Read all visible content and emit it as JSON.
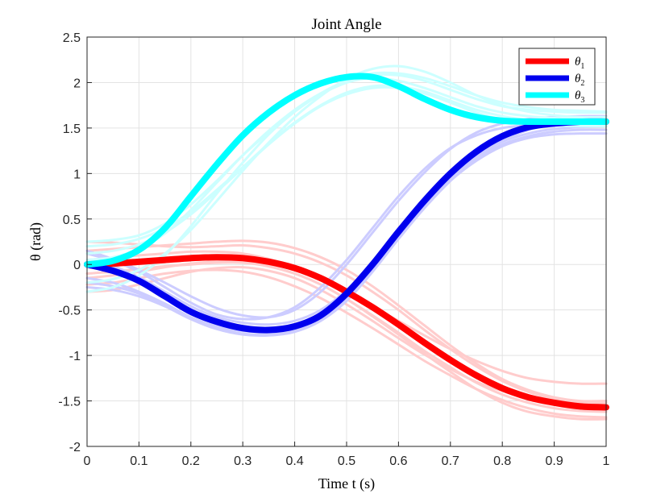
{
  "chart_data": {
    "type": "line",
    "title": "Joint Angle",
    "xlabel": "Time t (s)",
    "ylabel": "θ (rad)",
    "xlim": [
      0,
      1
    ],
    "ylim": [
      -2,
      2.5
    ],
    "x_ticks": [
      "0",
      "0.1",
      "0.2",
      "0.3",
      "0.4",
      "0.5",
      "0.6",
      "0.7",
      "0.8",
      "0.9",
      "1"
    ],
    "y_ticks": [
      "-2",
      "-1.5",
      "-1",
      "-0.5",
      "0",
      "0.5",
      "1",
      "1.5",
      "2",
      "2.5"
    ],
    "grid": true,
    "legend_position": "top-right",
    "x": [
      0,
      0.05,
      0.1,
      0.15,
      0.2,
      0.25,
      0.3,
      0.35,
      0.4,
      0.45,
      0.5,
      0.55,
      0.6,
      0.65,
      0.7,
      0.75,
      0.8,
      0.85,
      0.9,
      0.95,
      1
    ],
    "series": [
      {
        "name": "θ1",
        "label_symbol": "θ",
        "label_sub": "1",
        "color": "#ff0000",
        "values": [
          0,
          0.01,
          0.03,
          0.05,
          0.07,
          0.08,
          0.07,
          0.03,
          -0.04,
          -0.15,
          -0.3,
          -0.47,
          -0.66,
          -0.86,
          -1.05,
          -1.22,
          -1.36,
          -1.46,
          -1.52,
          -1.56,
          -1.57
        ]
      },
      {
        "name": "θ2",
        "label_symbol": "θ",
        "label_sub": "2",
        "color": "#0000ee",
        "values": [
          0,
          -0.07,
          -0.18,
          -0.35,
          -0.52,
          -0.63,
          -0.7,
          -0.72,
          -0.68,
          -0.56,
          -0.32,
          0,
          0.36,
          0.7,
          1,
          1.24,
          1.41,
          1.51,
          1.55,
          1.57,
          1.57
        ]
      },
      {
        "name": "θ3",
        "label_symbol": "θ",
        "label_sub": "3",
        "color": "#00ffff",
        "values": [
          0,
          0.04,
          0.16,
          0.4,
          0.75,
          1.1,
          1.42,
          1.67,
          1.86,
          1.99,
          2.06,
          2.06,
          1.96,
          1.82,
          1.7,
          1.62,
          1.58,
          1.57,
          1.57,
          1.57,
          1.57
        ]
      }
    ],
    "samples": [
      {
        "series": "θ1",
        "color": "#ffcccc",
        "values": [
          -0.1,
          -0.08,
          -0.05,
          -0.02,
          0,
          0.02,
          0.02,
          -0.02,
          -0.1,
          -0.22,
          -0.38,
          -0.56,
          -0.75,
          -0.95,
          -1.13,
          -1.3,
          -1.43,
          -1.52,
          -1.58,
          -1.61,
          -1.62
        ]
      },
      {
        "series": "θ1",
        "color": "#ffcccc",
        "values": [
          0.25,
          0.24,
          0.22,
          0.2,
          0.19,
          0.2,
          0.21,
          0.18,
          0.12,
          0.02,
          -0.12,
          -0.3,
          -0.5,
          -0.72,
          -0.93,
          -1.12,
          -1.28,
          -1.4,
          -1.48,
          -1.53,
          -1.55
        ]
      },
      {
        "series": "θ1",
        "color": "#ffcccc",
        "values": [
          -0.3,
          -0.28,
          -0.22,
          -0.15,
          -0.08,
          -0.04,
          -0.03,
          -0.07,
          -0.15,
          -0.28,
          -0.44,
          -0.62,
          -0.81,
          -0.99,
          -1.15,
          -1.29,
          -1.39,
          -1.46,
          -1.5,
          -1.52,
          -1.52
        ]
      },
      {
        "series": "θ1",
        "color": "#ffcccc",
        "values": [
          0.15,
          0.17,
          0.19,
          0.21,
          0.23,
          0.25,
          0.26,
          0.24,
          0.18,
          0.08,
          -0.06,
          -0.24,
          -0.45,
          -0.67,
          -0.89,
          -1.09,
          -1.26,
          -1.38,
          -1.46,
          -1.5,
          -1.5
        ]
      },
      {
        "series": "θ1",
        "color": "#ffcccc",
        "values": [
          -0.22,
          -0.2,
          -0.15,
          -0.1,
          -0.07,
          -0.06,
          -0.08,
          -0.14,
          -0.24,
          -0.37,
          -0.53,
          -0.7,
          -0.88,
          -1.06,
          -1.22,
          -1.37,
          -1.49,
          -1.58,
          -1.64,
          -1.67,
          -1.68
        ]
      },
      {
        "series": "θ1",
        "color": "#ffcccc",
        "values": [
          0.05,
          0.07,
          0.1,
          0.12,
          0.14,
          0.14,
          0.12,
          0.06,
          -0.03,
          -0.15,
          -0.3,
          -0.46,
          -0.62,
          -0.78,
          -0.93,
          -1.06,
          -1.17,
          -1.25,
          -1.29,
          -1.31,
          -1.31
        ]
      },
      {
        "series": "θ1",
        "color": "#ffcccc",
        "values": [
          -0.15,
          -0.12,
          -0.08,
          -0.03,
          0.01,
          0.03,
          0.03,
          -0.02,
          -0.1,
          -0.22,
          -0.38,
          -0.57,
          -0.77,
          -0.98,
          -1.18,
          -1.37,
          -1.52,
          -1.62,
          -1.67,
          -1.7,
          -1.7
        ]
      },
      {
        "series": "θ2",
        "color": "#ccccff",
        "values": [
          0.12,
          0.04,
          -0.08,
          -0.25,
          -0.42,
          -0.55,
          -0.6,
          -0.58,
          -0.47,
          -0.25,
          0.05,
          0.4,
          0.75,
          1.05,
          1.28,
          1.42,
          1.5,
          1.53,
          1.54,
          1.55,
          1.55
        ]
      },
      {
        "series": "θ2",
        "color": "#ccccff",
        "values": [
          -0.15,
          -0.2,
          -0.3,
          -0.43,
          -0.58,
          -0.68,
          -0.73,
          -0.74,
          -0.7,
          -0.58,
          -0.35,
          -0.02,
          0.33,
          0.66,
          0.94,
          1.16,
          1.32,
          1.41,
          1.46,
          1.48,
          1.48
        ]
      },
      {
        "series": "θ2",
        "color": "#ccccff",
        "values": [
          -0.25,
          -0.28,
          -0.35,
          -0.46,
          -0.6,
          -0.7,
          -0.76,
          -0.77,
          -0.72,
          -0.6,
          -0.38,
          -0.06,
          0.3,
          0.63,
          0.92,
          1.14,
          1.3,
          1.39,
          1.43,
          1.44,
          1.44
        ]
      },
      {
        "series": "θ2",
        "color": "#ccccff",
        "values": [
          0.05,
          -0.02,
          -0.14,
          -0.3,
          -0.46,
          -0.58,
          -0.64,
          -0.66,
          -0.62,
          -0.5,
          -0.28,
          0.02,
          0.36,
          0.69,
          0.97,
          1.19,
          1.35,
          1.44,
          1.49,
          1.51,
          1.52
        ]
      },
      {
        "series": "θ2",
        "color": "#ccccff",
        "values": [
          -0.2,
          -0.24,
          -0.32,
          -0.45,
          -0.6,
          -0.71,
          -0.77,
          -0.78,
          -0.74,
          -0.62,
          -0.4,
          -0.08,
          0.28,
          0.62,
          0.92,
          1.17,
          1.36,
          1.48,
          1.54,
          1.57,
          1.58
        ]
      },
      {
        "series": "θ2",
        "color": "#ccccff",
        "values": [
          0.15,
          0.06,
          -0.06,
          -0.2,
          -0.35,
          -0.48,
          -0.56,
          -0.58,
          -0.5,
          -0.3,
          0,
          0.35,
          0.7,
          1.01,
          1.27,
          1.45,
          1.55,
          1.6,
          1.62,
          1.63,
          1.63
        ]
      },
      {
        "series": "θ3",
        "color": "#ccffff",
        "values": [
          0.25,
          0.27,
          0.32,
          0.45,
          0.66,
          0.92,
          1.2,
          1.45,
          1.68,
          1.87,
          2.0,
          2.08,
          2.08,
          2.02,
          1.92,
          1.82,
          1.74,
          1.7,
          1.68,
          1.67,
          1.67
        ]
      },
      {
        "series": "θ3",
        "color": "#ccffff",
        "values": [
          -0.3,
          -0.25,
          -0.12,
          0.1,
          0.42,
          0.78,
          1.12,
          1.43,
          1.68,
          1.88,
          2.02,
          2.1,
          2.1,
          2.05,
          1.96,
          1.86,
          1.78,
          1.73,
          1.7,
          1.69,
          1.68
        ]
      },
      {
        "series": "θ3",
        "color": "#ccffff",
        "values": [
          0.12,
          0.15,
          0.22,
          0.35,
          0.55,
          0.8,
          1.06,
          1.32,
          1.55,
          1.74,
          1.87,
          1.94,
          1.94,
          1.88,
          1.78,
          1.67,
          1.59,
          1.55,
          1.53,
          1.52,
          1.52
        ]
      },
      {
        "series": "θ3",
        "color": "#ccffff",
        "values": [
          -0.2,
          -0.16,
          -0.06,
          0.12,
          0.38,
          0.7,
          1.03,
          1.34,
          1.62,
          1.85,
          2.04,
          2.15,
          2.18,
          2.12,
          2.0,
          1.86,
          1.75,
          1.68,
          1.64,
          1.62,
          1.62
        ]
      },
      {
        "series": "θ3",
        "color": "#ccffff",
        "values": [
          0.05,
          0.08,
          0.17,
          0.34,
          0.6,
          0.9,
          1.2,
          1.47,
          1.7,
          1.88,
          2.0,
          2.05,
          2.02,
          1.94,
          1.84,
          1.74,
          1.67,
          1.63,
          1.61,
          1.6,
          1.6
        ]
      },
      {
        "series": "θ3",
        "color": "#ccffff",
        "values": [
          0.2,
          0.22,
          0.28,
          0.4,
          0.58,
          0.82,
          1.07,
          1.33,
          1.56,
          1.75,
          1.89,
          1.96,
          1.96,
          1.9,
          1.8,
          1.7,
          1.63,
          1.59,
          1.58,
          1.58,
          1.58
        ]
      }
    ]
  }
}
